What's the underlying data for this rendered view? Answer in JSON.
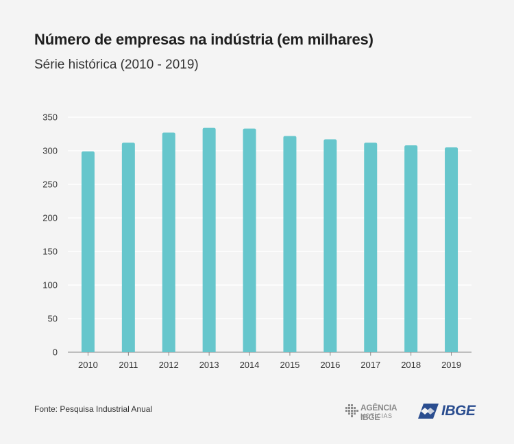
{
  "header": {
    "title": "Número de empresas na indústria (em milhares)",
    "subtitle": "Série histórica (2010 - 2019)"
  },
  "footer": {
    "source": "Fonte: Pesquisa Industrial Anual",
    "agencia_top": "AGÊNCIA IBGE",
    "agencia_bottom": "NOTÍCIAS",
    "ibge_logo": "IBGE"
  },
  "colors": {
    "bar": "#66c6cc",
    "grid": "#ffffff",
    "axis": "#888888",
    "brand": "#2a4d8f"
  },
  "chart_data": {
    "type": "bar",
    "categories": [
      "2010",
      "2011",
      "2012",
      "2013",
      "2014",
      "2015",
      "2016",
      "2017",
      "2018",
      "2019"
    ],
    "values": [
      299,
      312,
      327,
      334,
      333,
      322,
      317,
      312,
      308,
      305
    ],
    "ylim": [
      0,
      350
    ],
    "yticks": [
      0,
      50,
      100,
      150,
      200,
      250,
      300,
      350
    ],
    "grid": true
  }
}
